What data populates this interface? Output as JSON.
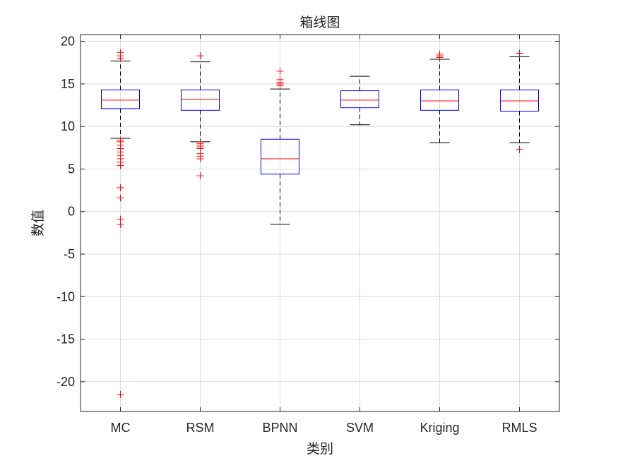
{
  "chart_data": {
    "type": "boxplot",
    "title": "箱线图",
    "xlabel": "类别",
    "ylabel": "数值",
    "ylim": [
      -23.5,
      20.8
    ],
    "yticks": [
      -20,
      -15,
      -10,
      -5,
      0,
      5,
      10,
      15,
      20
    ],
    "ytick_labels": [
      "-20",
      "-15",
      "-10",
      "-5",
      "0",
      "5",
      "10",
      "15",
      "20"
    ],
    "grid": true,
    "categories": [
      "MC",
      "RSM",
      "BPNN",
      "SVM",
      "Kriging",
      "RMLS"
    ],
    "colors": {
      "box": "#0000ff",
      "median": "#ff0000",
      "outlier": "#ff0000",
      "whisker": "#000000",
      "grid": "#dcdcdc",
      "axes": "#262626"
    },
    "boxes": [
      {
        "name": "MC",
        "q1": 12.1,
        "median": 13.1,
        "q3": 14.3,
        "whisker_low": 8.6,
        "whisker_high": 17.7,
        "outliers": [
          18.7,
          18.3,
          18.0,
          8.4,
          8.2,
          7.8,
          7.4,
          7.0,
          6.6,
          6.2,
          5.8,
          5.4,
          2.8,
          1.6,
          -0.9,
          -1.5,
          -21.5
        ]
      },
      {
        "name": "RSM",
        "q1": 11.9,
        "median": 13.2,
        "q3": 14.3,
        "whisker_low": 8.2,
        "whisker_high": 17.6,
        "outliers": [
          18.3,
          8.0,
          7.8,
          7.6,
          7.4,
          6.8,
          6.5,
          6.2,
          4.2
        ]
      },
      {
        "name": "BPNN",
        "q1": 4.4,
        "median": 6.2,
        "q3": 8.5,
        "whisker_low": -1.5,
        "whisker_high": 14.4,
        "outliers": [
          16.5,
          15.5,
          15.2,
          15.0,
          14.8
        ]
      },
      {
        "name": "SVM",
        "q1": 12.2,
        "median": 13.1,
        "q3": 14.2,
        "whisker_low": 10.2,
        "whisker_high": 15.9,
        "outliers": []
      },
      {
        "name": "Kriging",
        "q1": 11.9,
        "median": 13.0,
        "q3": 14.3,
        "whisker_low": 8.1,
        "whisker_high": 17.9,
        "outliers": [
          18.5,
          18.3,
          18.1
        ]
      },
      {
        "name": "RMLS",
        "q1": 11.8,
        "median": 13.0,
        "q3": 14.3,
        "whisker_low": 8.1,
        "whisker_high": 18.2,
        "outliers": [
          18.6,
          7.3
        ]
      }
    ]
  }
}
